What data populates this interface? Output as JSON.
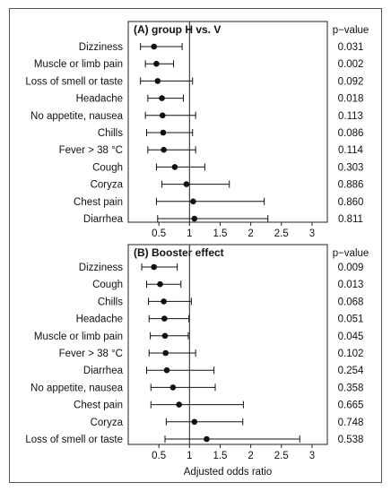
{
  "chart_data": [
    {
      "type": "forest",
      "title": "(A) group H vs. V",
      "pvalue_header": "p−value",
      "xlim": [
        0,
        3.25
      ],
      "xticks": [
        0.5,
        1,
        1.5,
        2,
        2.5,
        3
      ],
      "xtick_labels": [
        "0.5",
        "1",
        "1.5",
        "2",
        "2.5",
        "3"
      ],
      "reference_line": 1,
      "rows": [
        {
          "label": "Dizziness",
          "or": 0.42,
          "lo": 0.2,
          "hi": 0.88,
          "p": "0.031"
        },
        {
          "label": "Muscle or limb pain",
          "or": 0.46,
          "lo": 0.28,
          "hi": 0.74,
          "p": "0.002"
        },
        {
          "label": "Loss of smell or taste",
          "or": 0.48,
          "lo": 0.2,
          "hi": 1.05,
          "p": "0.092"
        },
        {
          "label": "Headache",
          "or": 0.55,
          "lo": 0.32,
          "hi": 0.9,
          "p": "0.018"
        },
        {
          "label": "No appetite, nausea",
          "or": 0.56,
          "lo": 0.28,
          "hi": 1.1,
          "p": "0.113"
        },
        {
          "label": "Chills",
          "or": 0.57,
          "lo": 0.3,
          "hi": 1.05,
          "p": "0.086"
        },
        {
          "label": "Fever > 38 °C",
          "or": 0.58,
          "lo": 0.32,
          "hi": 1.1,
          "p": "0.114"
        },
        {
          "label": "Cough",
          "or": 0.76,
          "lo": 0.46,
          "hi": 1.25,
          "p": "0.303"
        },
        {
          "label": "Coryza",
          "or": 0.95,
          "lo": 0.55,
          "hi": 1.65,
          "p": "0.886"
        },
        {
          "label": "Chest pain",
          "or": 1.06,
          "lo": 0.46,
          "hi": 2.22,
          "p": "0.860"
        },
        {
          "label": "Diarrhea",
          "or": 1.08,
          "lo": 0.48,
          "hi": 2.28,
          "p": "0.811"
        }
      ]
    },
    {
      "type": "forest",
      "title": "(B) Booster effect",
      "pvalue_header": "p−value",
      "xlabel": "Adjusted odds ratio",
      "xlim": [
        0,
        3.25
      ],
      "xticks": [
        0.5,
        1,
        1.5,
        2,
        2.5,
        3
      ],
      "xtick_labels": [
        "0.5",
        "1",
        "1.5",
        "2",
        "2.5",
        "3"
      ],
      "reference_line": 1,
      "rows": [
        {
          "label": "Dizziness",
          "or": 0.42,
          "lo": 0.22,
          "hi": 0.8,
          "p": "0.009"
        },
        {
          "label": "Cough",
          "or": 0.52,
          "lo": 0.3,
          "hi": 0.86,
          "p": "0.013"
        },
        {
          "label": "Chills",
          "or": 0.58,
          "lo": 0.33,
          "hi": 1.03,
          "p": "0.068"
        },
        {
          "label": "Headache",
          "or": 0.59,
          "lo": 0.34,
          "hi": 0.99,
          "p": "0.051"
        },
        {
          "label": "Muscle or limb pain",
          "or": 0.6,
          "lo": 0.36,
          "hi": 0.98,
          "p": "0.045"
        },
        {
          "label": "Fever > 38 °C",
          "or": 0.61,
          "lo": 0.34,
          "hi": 1.1,
          "p": "0.102"
        },
        {
          "label": "Diarrhea",
          "or": 0.63,
          "lo": 0.3,
          "hi": 1.4,
          "p": "0.254"
        },
        {
          "label": "No appetite, nausea",
          "or": 0.73,
          "lo": 0.37,
          "hi": 1.42,
          "p": "0.358"
        },
        {
          "label": "Chest pain",
          "or": 0.83,
          "lo": 0.37,
          "hi": 1.88,
          "p": "0.665"
        },
        {
          "label": "Coryza",
          "or": 1.08,
          "lo": 0.62,
          "hi": 1.87,
          "p": "0.748"
        },
        {
          "label": "Loss of smell or taste",
          "or": 1.28,
          "lo": 0.6,
          "hi": 2.8,
          "p": "0.538"
        }
      ]
    }
  ]
}
